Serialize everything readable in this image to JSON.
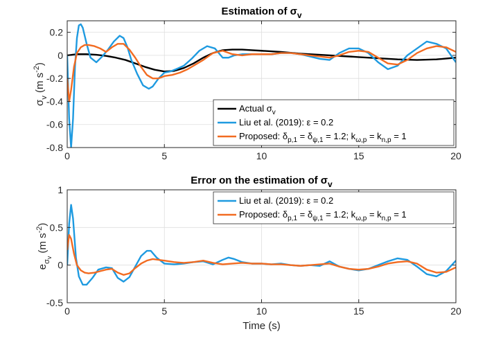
{
  "chart_data": [
    {
      "type": "line",
      "title": "Estimation of σ",
      "title_sub": "v",
      "xlabel": "",
      "ylabel": "σ",
      "ylabel_sub": "v",
      "ylabel_unit": "(m s",
      "ylabel_unit_sup": "-2",
      "ylabel_unit_close": ")",
      "xlim": [
        0,
        20
      ],
      "ylim": [
        -0.8,
        0.3
      ],
      "xticks": [
        0,
        5,
        10,
        15,
        20
      ],
      "yticks": [
        -0.8,
        -0.6,
        -0.4,
        -0.2,
        0,
        0.2
      ],
      "ytick_labels": [
        "-0.8",
        "-0.6",
        "-0.4",
        "-0.2",
        "0",
        "0.2"
      ],
      "xtick_labels": [
        "0",
        "5",
        "10",
        "15",
        "20"
      ],
      "grid": true,
      "legend_position": "bottom-right",
      "series": [
        {
          "name": "Actual σv",
          "legend_text": "Actual σ",
          "legend_sub": "v",
          "color": "#000000",
          "x": [
            0,
            0.5,
            1,
            1.5,
            2,
            2.5,
            3,
            3.5,
            4,
            4.5,
            5,
            5.5,
            6,
            6.5,
            7,
            7.5,
            8,
            8.5,
            9,
            9.5,
            10,
            11,
            12,
            13,
            14,
            15,
            16,
            17,
            18,
            19,
            20
          ],
          "y": [
            0,
            0.01,
            0.01,
            0.005,
            -0.005,
            -0.02,
            -0.04,
            -0.07,
            -0.1,
            -0.125,
            -0.14,
            -0.135,
            -0.11,
            -0.07,
            -0.02,
            0.02,
            0.045,
            0.05,
            0.05,
            0.045,
            0.04,
            0.03,
            0.015,
            0.005,
            -0.005,
            -0.015,
            -0.025,
            -0.035,
            -0.04,
            -0.035,
            -0.02
          ]
        },
        {
          "name": "Liu et al. (2019): ε = 0.2",
          "legend_text": "Liu et al. (2019): ε = 0.2",
          "color": "#1e9ae0",
          "x": [
            0,
            0.1,
            0.2,
            0.3,
            0.4,
            0.5,
            0.6,
            0.7,
            0.8,
            0.9,
            1,
            1.2,
            1.5,
            1.8,
            2.1,
            2.4,
            2.7,
            2.9,
            3.1,
            3.3,
            3.6,
            3.9,
            4.2,
            4.4,
            4.7,
            5,
            5.3,
            5.6,
            6,
            6.4,
            6.8,
            7.2,
            7.6,
            8,
            8.3,
            8.6,
            9,
            9.5,
            10,
            10.5,
            11,
            11.5,
            12,
            12.5,
            13,
            13.5,
            14,
            14.5,
            15,
            15.5,
            16,
            16.5,
            17,
            17.5,
            18,
            18.5,
            19,
            19.5,
            20
          ],
          "y": [
            0.0,
            -0.55,
            -0.8,
            -0.55,
            -0.1,
            0.15,
            0.26,
            0.27,
            0.24,
            0.17,
            0.1,
            -0.02,
            -0.06,
            -0.01,
            0.05,
            0.12,
            0.17,
            0.15,
            0.07,
            -0.04,
            -0.16,
            -0.26,
            -0.29,
            -0.27,
            -0.2,
            -0.15,
            -0.14,
            -0.12,
            -0.09,
            -0.03,
            0.04,
            0.08,
            0.06,
            -0.02,
            -0.02,
            0.0,
            0.01,
            0.01,
            0.01,
            0.01,
            0.02,
            0.02,
            0.01,
            -0.01,
            -0.03,
            -0.04,
            0.02,
            0.06,
            0.06,
            0.02,
            -0.06,
            -0.12,
            -0.09,
            0.0,
            0.06,
            0.12,
            0.1,
            0.06,
            -0.06
          ]
        },
        {
          "name": "Proposed",
          "legend_text": "Proposed:  δ",
          "color": "#f26b21",
          "x": [
            0,
            0.1,
            0.2,
            0.35,
            0.5,
            0.7,
            0.9,
            1.1,
            1.4,
            1.7,
            2,
            2.3,
            2.6,
            2.9,
            3.2,
            3.5,
            3.8,
            4.1,
            4.4,
            4.7,
            5,
            5.4,
            5.8,
            6.2,
            6.6,
            7,
            7.5,
            8,
            8.5,
            9,
            9.5,
            10,
            10.5,
            11,
            11.5,
            12,
            12.5,
            13,
            13.5,
            14,
            14.5,
            15,
            15.5,
            16,
            16.5,
            17,
            17.5,
            18,
            18.5,
            19,
            19.5,
            20
          ],
          "y": [
            -0.2,
            -0.4,
            -0.3,
            -0.1,
            0.02,
            0.07,
            0.09,
            0.09,
            0.08,
            0.06,
            0.03,
            0.07,
            0.1,
            0.1,
            0.05,
            -0.02,
            -0.1,
            -0.17,
            -0.2,
            -0.2,
            -0.18,
            -0.17,
            -0.15,
            -0.12,
            -0.08,
            -0.04,
            0.02,
            0.04,
            0.01,
            0.0,
            0.01,
            0.01,
            0.01,
            0.02,
            0.02,
            0.01,
            0.0,
            -0.01,
            -0.02,
            0.0,
            0.03,
            0.04,
            0.03,
            -0.02,
            -0.07,
            -0.08,
            -0.04,
            0.02,
            0.06,
            0.08,
            0.07,
            0.03
          ]
        }
      ],
      "legend_rich": [
        {
          "key": 0,
          "parts": [
            [
              "t",
              "Actual "
            ],
            [
              "t",
              "σ"
            ],
            [
              "sub",
              "v"
            ]
          ]
        },
        {
          "key": 1,
          "parts": [
            [
              "t",
              "Liu et al. (2019): ε = 0.2"
            ]
          ]
        },
        {
          "key": 2,
          "parts": [
            [
              "t",
              "Proposed:  δ"
            ],
            [
              "sub",
              "p,1"
            ],
            [
              "t",
              " = δ"
            ],
            [
              "sub",
              "ψ,1"
            ],
            [
              "t",
              " = 1.2; k"
            ],
            [
              "sub",
              "ω,p"
            ],
            [
              "t",
              " = k"
            ],
            [
              "sub",
              "n,p"
            ],
            [
              "t",
              " = 1"
            ]
          ]
        }
      ]
    },
    {
      "type": "line",
      "title": "Error on the estimation of σ",
      "title_sub": "v",
      "xlabel": "Time (s)",
      "ylabel": "e",
      "ylabel_sub": "σ",
      "ylabel_subsub": "v",
      "ylabel_unit": "(m s",
      "ylabel_unit_sup": "-2",
      "ylabel_unit_close": ")",
      "xlim": [
        0,
        20
      ],
      "ylim": [
        -0.5,
        1
      ],
      "xticks": [
        0,
        5,
        10,
        15,
        20
      ],
      "yticks": [
        -0.5,
        0,
        0.5,
        1
      ],
      "ytick_labels": [
        "-0.5",
        "0",
        "0.5",
        "1"
      ],
      "xtick_labels": [
        "0",
        "5",
        "10",
        "15",
        "20"
      ],
      "grid": true,
      "legend_position": "top-right",
      "series": [
        {
          "name": "Liu et al. (2019): ε = 0.2",
          "color": "#1e9ae0",
          "x": [
            0,
            0.1,
            0.2,
            0.3,
            0.45,
            0.6,
            0.8,
            1,
            1.3,
            1.6,
            2,
            2.3,
            2.6,
            2.9,
            3.2,
            3.5,
            3.8,
            4.1,
            4.3,
            4.6,
            5,
            5.5,
            6,
            6.5,
            7,
            7.5,
            8,
            8.3,
            8.6,
            9,
            9.5,
            10,
            10.5,
            11,
            11.5,
            12,
            12.5,
            13,
            13.5,
            14,
            14.5,
            15,
            15.5,
            16,
            16.5,
            17,
            17.5,
            18,
            18.5,
            19,
            19.5,
            20
          ],
          "y": [
            0.0,
            0.55,
            0.8,
            0.62,
            0.1,
            -0.15,
            -0.26,
            -0.26,
            -0.17,
            -0.06,
            -0.03,
            -0.04,
            -0.17,
            -0.22,
            -0.16,
            -0.02,
            0.12,
            0.19,
            0.19,
            0.1,
            0.02,
            0.01,
            0.02,
            0.04,
            0.05,
            0.01,
            0.07,
            0.1,
            0.08,
            0.04,
            0.02,
            0.02,
            0.01,
            0.02,
            0.0,
            -0.01,
            0.0,
            -0.01,
            0.05,
            -0.02,
            -0.05,
            -0.07,
            -0.05,
            0.0,
            0.05,
            0.09,
            0.07,
            -0.02,
            -0.12,
            -0.15,
            -0.08,
            0.06
          ]
        },
        {
          "name": "Proposed",
          "color": "#f26b21",
          "x": [
            0,
            0.1,
            0.2,
            0.35,
            0.5,
            0.7,
            0.9,
            1.1,
            1.4,
            1.7,
            2,
            2.3,
            2.6,
            2.9,
            3.2,
            3.5,
            3.8,
            4.1,
            4.4,
            4.7,
            5,
            5.5,
            6,
            6.5,
            7,
            7.5,
            8,
            8.5,
            9,
            9.5,
            10,
            10.5,
            11,
            11.5,
            12,
            12.5,
            13,
            13.5,
            14,
            14.5,
            15,
            15.5,
            16,
            16.5,
            17,
            17.5,
            18,
            18.5,
            19,
            19.5,
            20
          ],
          "y": [
            0.2,
            0.4,
            0.35,
            0.15,
            0.0,
            -0.07,
            -0.1,
            -0.11,
            -0.1,
            -0.08,
            -0.06,
            -0.05,
            -0.1,
            -0.13,
            -0.11,
            -0.04,
            0.02,
            0.06,
            0.08,
            0.07,
            0.06,
            0.04,
            0.03,
            0.04,
            0.06,
            0.03,
            0.01,
            0.02,
            0.03,
            0.02,
            0.02,
            0.01,
            0.01,
            0.0,
            -0.01,
            0.0,
            0.01,
            0.02,
            -0.02,
            -0.05,
            -0.06,
            -0.05,
            -0.02,
            0.02,
            0.04,
            0.05,
            0.02,
            -0.06,
            -0.1,
            -0.09,
            -0.03
          ]
        }
      ],
      "legend_rich": [
        {
          "key": 0,
          "parts": [
            [
              "t",
              "Liu et al. (2019): ε = 0.2"
            ]
          ]
        },
        {
          "key": 1,
          "parts": [
            [
              "t",
              "Proposed:  δ"
            ],
            [
              "sub",
              "p,1"
            ],
            [
              "t",
              " = δ"
            ],
            [
              "sub",
              "ψ,1"
            ],
            [
              "t",
              " = 1.2; k"
            ],
            [
              "sub",
              "ω,p"
            ],
            [
              "t",
              " = k"
            ],
            [
              "sub",
              "n,p"
            ],
            [
              "t",
              " = 1"
            ]
          ]
        }
      ]
    }
  ]
}
